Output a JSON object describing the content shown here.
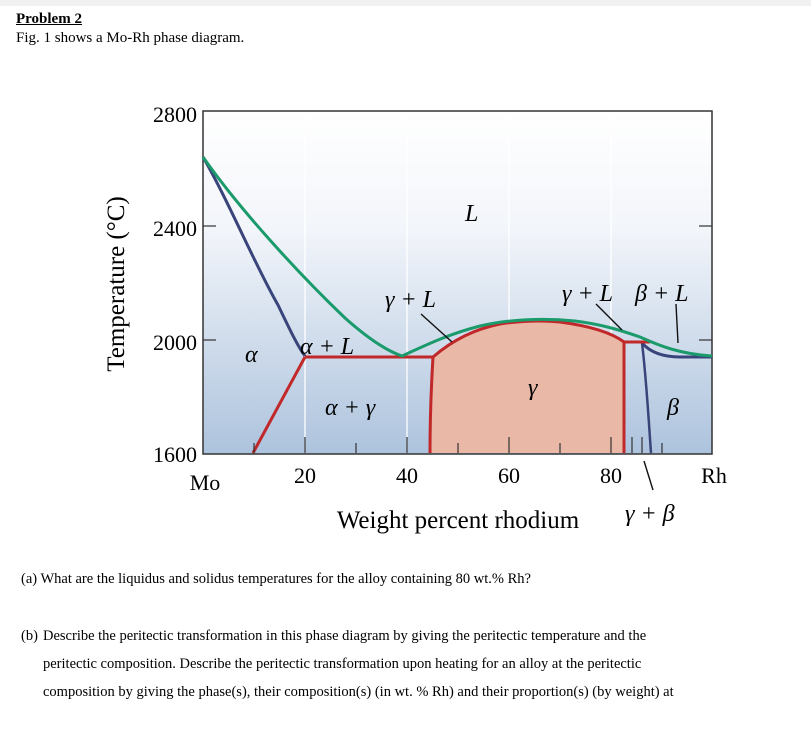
{
  "problem": {
    "title": "Problem 2",
    "intro": "Fig. 1 shows a Mo-Rh phase diagram."
  },
  "figure": {
    "y_axis_label": "Temperature (°C)",
    "x_axis_label": "Weight percent rhodium",
    "y_ticks": [
      "2800",
      "2400",
      "2000",
      "1600"
    ],
    "x_ticks": [
      "20",
      "40",
      "60",
      "80"
    ],
    "left_end_label": "Mo",
    "right_end_label": "Rh",
    "region_labels": {
      "liquid": "L",
      "alpha": "α",
      "alpha_plus_liquid": "α + L",
      "gamma_plus_liquid_left": "γ + L",
      "gamma_plus_liquid_right": "γ + L",
      "beta_plus_liquid": "β + L",
      "alpha_plus_gamma": "α + γ",
      "gamma": "γ",
      "beta": "β",
      "gamma_plus_beta": "γ + β"
    },
    "colors": {
      "background_top": "#ffffff",
      "background_bottom": "#adc3dd",
      "liquidus": "#1b9a6b",
      "solidus": "#39447a",
      "phase_boundary": "#c0282a",
      "gamma_fill": "#e9b8a6"
    }
  },
  "chart_data": {
    "type": "phase-diagram",
    "x_range": [
      0,
      100
    ],
    "y_range": [
      1600,
      2800
    ],
    "x_unit": "wt% Rh",
    "y_unit": "°C",
    "liquidus": [
      [
        0,
        2620
      ],
      [
        10,
        2390
      ],
      [
        20,
        2190
      ],
      [
        30,
        2030
      ],
      [
        40,
        1940
      ],
      [
        50,
        2035
      ],
      [
        60,
        2075
      ],
      [
        70,
        2075
      ],
      [
        80,
        2040
      ],
      [
        88,
        1980
      ],
      [
        100,
        1963
      ]
    ],
    "alpha_solidus": [
      [
        0,
        2620
      ],
      [
        5,
        2450
      ],
      [
        10,
        2260
      ],
      [
        15,
        2100
      ],
      [
        20,
        1998
      ],
      [
        28,
        1940
      ]
    ],
    "alpha_solvus": [
      [
        10,
        1600
      ],
      [
        20,
        1940
      ]
    ],
    "gamma_left_boundary": [
      [
        44,
        1940
      ],
      [
        43,
        1750
      ],
      [
        42,
        1600
      ]
    ],
    "gamma_dome": [
      [
        44,
        1940
      ],
      [
        52,
        2045
      ],
      [
        60,
        2063
      ],
      [
        70,
        2060
      ],
      [
        78,
        2035
      ],
      [
        82,
        1975
      ]
    ],
    "gamma_right_boundary": [
      [
        82,
        1975
      ],
      [
        82,
        1750
      ],
      [
        82,
        1600
      ]
    ],
    "eutectic_line": {
      "temperature": 1940,
      "x": [
        20,
        44
      ]
    },
    "peritectic_line": {
      "temperature": 1975,
      "x": [
        82,
        87
      ]
    },
    "beta_solidus": [
      [
        87,
        1975
      ],
      [
        90,
        1955
      ],
      [
        95,
        1950
      ],
      [
        100,
        1950
      ]
    ],
    "beta_solvus": [
      [
        87,
        1975
      ],
      [
        88,
        1800
      ],
      [
        89,
        1600
      ]
    ]
  },
  "questions": {
    "a_label": "(a)",
    "a_text": "What are the liquidus and solidus temperatures for the alloy containing 80 wt.% Rh?",
    "b_label": "(b)",
    "b_line1": "Describe the peritectic transformation in this phase diagram by giving the peritectic temperature and the",
    "b_line2": "peritectic composition.   Describe the peritectic transformation upon heating for an alloy at the peritectic",
    "b_line3": "composition by giving the phase(s), their composition(s) (in wt. % Rh) and their proportion(s) (by weight) at"
  }
}
